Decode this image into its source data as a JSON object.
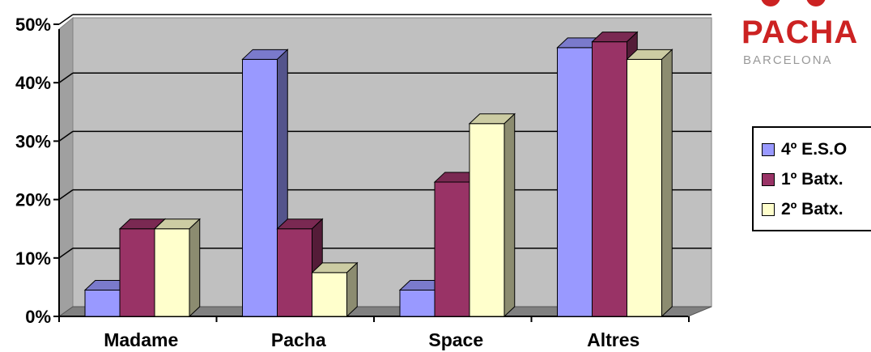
{
  "chart_data": {
    "type": "bar",
    "categories": [
      "Madame",
      "Pacha",
      "Space",
      "Altres"
    ],
    "series": [
      {
        "name": "4º E.S.O",
        "values": [
          4.5,
          44,
          4.5,
          46
        ],
        "color": "#9999FF"
      },
      {
        "name": "1º Batx.",
        "values": [
          15,
          15,
          23,
          47
        ],
        "color": "#993366"
      },
      {
        "name": "2º Batx.",
        "values": [
          15,
          7.5,
          33,
          44
        ],
        "color": "#FFFFCC"
      }
    ],
    "y_ticks": [
      "0%",
      "10%",
      "20%",
      "30%",
      "40%",
      "50%"
    ],
    "ylim": [
      0,
      50
    ],
    "grid": true,
    "legend_position": "right",
    "wall_color": "#C0C0C0",
    "floor_color": "#808080"
  },
  "logo": {
    "name": "pacha-logo",
    "text_main": "PACHA",
    "text_sub": "BARCELONA",
    "color": "#CC2222"
  }
}
